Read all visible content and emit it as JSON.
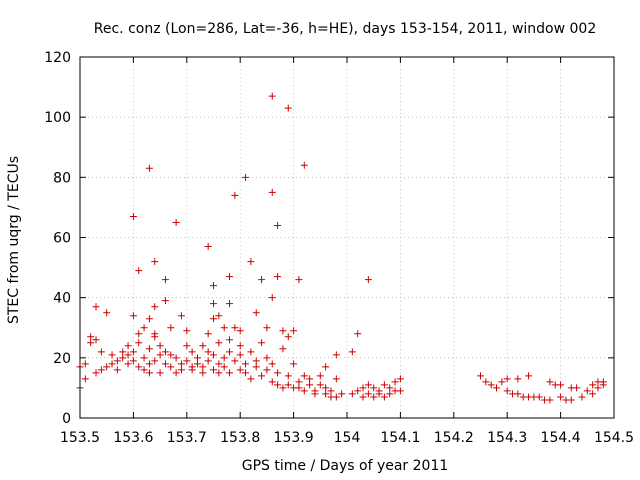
{
  "chart_data": {
    "type": "scatter",
    "title": "Rec. conz (Lon=286, Lat=-36, h=HE), days 153-154, 2011, window 002",
    "xlabel": "GPS time / Days of year 2011",
    "ylabel": "STEC from uqrg / TECUs",
    "xlim": [
      153.5,
      154.5
    ],
    "ylim": [
      0,
      120
    ],
    "xticks": [
      153.5,
      153.6,
      153.7,
      153.8,
      153.9,
      154,
      154.1,
      154.2,
      154.3,
      154.4,
      154.5
    ],
    "xtick_labels": [
      "153.5",
      "153.6",
      "153.7",
      "153.8",
      "153.9",
      "154",
      "154.1",
      "154.2",
      "154.3",
      "154.4",
      "154.5"
    ],
    "yticks": [
      0,
      20,
      40,
      60,
      80,
      100,
      120
    ],
    "ytick_labels": [
      "0",
      "20",
      "40",
      "60",
      "80",
      "100",
      "120"
    ],
    "grid": true,
    "marker": "plus",
    "color": "#cc0000",
    "points": [
      [
        153.5,
        10
      ],
      [
        153.5,
        17
      ],
      [
        153.51,
        13
      ],
      [
        153.51,
        18
      ],
      [
        153.52,
        25
      ],
      [
        153.52,
        27
      ],
      [
        153.53,
        15
      ],
      [
        153.53,
        26
      ],
      [
        153.53,
        37
      ],
      [
        153.54,
        16
      ],
      [
        153.54,
        22
      ],
      [
        153.55,
        35
      ],
      [
        153.55,
        17
      ],
      [
        153.56,
        18
      ],
      [
        153.56,
        21
      ],
      [
        153.57,
        19
      ],
      [
        153.57,
        16
      ],
      [
        153.58,
        20
      ],
      [
        153.58,
        22
      ],
      [
        153.59,
        18
      ],
      [
        153.59,
        24
      ],
      [
        153.59,
        21
      ],
      [
        153.6,
        34
      ],
      [
        153.6,
        67
      ],
      [
        153.6,
        22
      ],
      [
        153.6,
        19
      ],
      [
        153.61,
        17
      ],
      [
        153.61,
        25
      ],
      [
        153.61,
        28
      ],
      [
        153.61,
        49
      ],
      [
        153.62,
        16
      ],
      [
        153.62,
        30
      ],
      [
        153.62,
        20
      ],
      [
        153.63,
        18
      ],
      [
        153.63,
        33
      ],
      [
        153.63,
        83
      ],
      [
        153.63,
        15
      ],
      [
        153.63,
        23
      ],
      [
        153.64,
        28
      ],
      [
        153.64,
        37
      ],
      [
        153.64,
        52
      ],
      [
        153.64,
        27
      ],
      [
        153.64,
        19
      ],
      [
        153.65,
        21
      ],
      [
        153.65,
        15
      ],
      [
        153.65,
        24
      ],
      [
        153.66,
        39
      ],
      [
        153.66,
        46
      ],
      [
        153.66,
        22
      ],
      [
        153.66,
        18
      ],
      [
        153.67,
        30
      ],
      [
        153.67,
        17
      ],
      [
        153.67,
        21
      ],
      [
        153.68,
        15
      ],
      [
        153.68,
        65
      ],
      [
        153.68,
        20
      ],
      [
        153.69,
        18
      ],
      [
        153.69,
        34
      ],
      [
        153.69,
        16
      ],
      [
        153.7,
        24
      ],
      [
        153.7,
        29
      ],
      [
        153.7,
        19
      ],
      [
        153.71,
        17
      ],
      [
        153.71,
        22
      ],
      [
        153.71,
        16
      ],
      [
        153.72,
        20
      ],
      [
        153.72,
        18
      ],
      [
        153.73,
        24
      ],
      [
        153.73,
        17
      ],
      [
        153.73,
        15
      ],
      [
        153.74,
        22
      ],
      [
        153.74,
        57
      ],
      [
        153.74,
        28
      ],
      [
        153.74,
        19
      ],
      [
        153.75,
        16
      ],
      [
        153.75,
        44
      ],
      [
        153.75,
        33
      ],
      [
        153.75,
        21
      ],
      [
        153.75,
        38
      ],
      [
        153.76,
        34
      ],
      [
        153.76,
        25
      ],
      [
        153.76,
        18
      ],
      [
        153.76,
        15
      ],
      [
        153.77,
        20
      ],
      [
        153.77,
        17
      ],
      [
        153.77,
        30
      ],
      [
        153.78,
        47
      ],
      [
        153.78,
        26
      ],
      [
        153.78,
        15
      ],
      [
        153.78,
        22
      ],
      [
        153.78,
        38
      ],
      [
        153.79,
        19
      ],
      [
        153.79,
        74
      ],
      [
        153.79,
        30
      ],
      [
        153.8,
        16
      ],
      [
        153.8,
        21
      ],
      [
        153.8,
        29
      ],
      [
        153.8,
        24
      ],
      [
        153.81,
        80
      ],
      [
        153.81,
        18
      ],
      [
        153.81,
        15
      ],
      [
        153.82,
        22
      ],
      [
        153.82,
        52
      ],
      [
        153.82,
        13
      ],
      [
        153.83,
        19
      ],
      [
        153.83,
        35
      ],
      [
        153.83,
        17
      ],
      [
        153.84,
        25
      ],
      [
        153.84,
        46
      ],
      [
        153.84,
        14
      ],
      [
        153.85,
        20
      ],
      [
        153.85,
        16
      ],
      [
        153.85,
        30
      ],
      [
        153.86,
        12
      ],
      [
        153.86,
        107
      ],
      [
        153.86,
        75
      ],
      [
        153.86,
        40
      ],
      [
        153.86,
        18
      ],
      [
        153.87,
        64
      ],
      [
        153.87,
        11
      ],
      [
        153.87,
        47
      ],
      [
        153.87,
        15
      ],
      [
        153.88,
        29
      ],
      [
        153.88,
        10
      ],
      [
        153.88,
        23
      ],
      [
        153.89,
        103
      ],
      [
        153.89,
        14
      ],
      [
        153.89,
        27
      ],
      [
        153.89,
        11
      ],
      [
        153.9,
        29
      ],
      [
        153.9,
        10
      ],
      [
        153.9,
        18
      ],
      [
        153.91,
        12
      ],
      [
        153.91,
        46
      ],
      [
        153.91,
        10
      ],
      [
        153.92,
        14
      ],
      [
        153.92,
        84
      ],
      [
        153.92,
        9
      ],
      [
        153.93,
        11
      ],
      [
        153.93,
        13
      ],
      [
        153.94,
        9
      ],
      [
        153.94,
        8
      ],
      [
        153.95,
        14
      ],
      [
        153.95,
        11
      ],
      [
        153.96,
        17
      ],
      [
        153.96,
        8
      ],
      [
        153.96,
        10
      ],
      [
        153.97,
        7
      ],
      [
        153.97,
        9
      ],
      [
        153.98,
        21
      ],
      [
        153.98,
        13
      ],
      [
        153.98,
        7
      ],
      [
        153.99,
        8
      ],
      [
        154.01,
        22
      ],
      [
        154.01,
        8
      ],
      [
        154.02,
        28
      ],
      [
        154.02,
        9
      ],
      [
        154.03,
        10
      ],
      [
        154.03,
        7
      ],
      [
        154.04,
        46
      ],
      [
        154.04,
        11
      ],
      [
        154.04,
        8
      ],
      [
        154.05,
        7
      ],
      [
        154.05,
        10
      ],
      [
        154.06,
        8
      ],
      [
        154.06,
        9
      ],
      [
        154.07,
        11
      ],
      [
        154.07,
        7
      ],
      [
        154.08,
        10
      ],
      [
        154.08,
        8
      ],
      [
        154.09,
        12
      ],
      [
        154.09,
        9
      ],
      [
        154.1,
        13
      ],
      [
        154.1,
        9
      ],
      [
        154.25,
        14
      ],
      [
        154.26,
        12
      ],
      [
        154.27,
        11
      ],
      [
        154.28,
        10
      ],
      [
        154.29,
        12
      ],
      [
        154.3,
        9
      ],
      [
        154.3,
        13
      ],
      [
        154.31,
        8
      ],
      [
        154.32,
        13
      ],
      [
        154.32,
        8
      ],
      [
        154.33,
        7
      ],
      [
        154.34,
        14
      ],
      [
        154.34,
        7
      ],
      [
        154.35,
        7
      ],
      [
        154.36,
        7
      ],
      [
        154.37,
        6
      ],
      [
        154.38,
        12
      ],
      [
        154.38,
        6
      ],
      [
        154.39,
        11
      ],
      [
        154.4,
        7
      ],
      [
        154.4,
        11
      ],
      [
        154.41,
        6
      ],
      [
        154.42,
        10
      ],
      [
        154.42,
        6
      ],
      [
        154.43,
        10
      ],
      [
        154.44,
        7
      ],
      [
        154.45,
        9
      ],
      [
        154.46,
        8
      ],
      [
        154.46,
        11
      ],
      [
        154.47,
        12
      ],
      [
        154.47,
        10
      ],
      [
        154.48,
        11
      ],
      [
        154.48,
        12
      ]
    ]
  }
}
